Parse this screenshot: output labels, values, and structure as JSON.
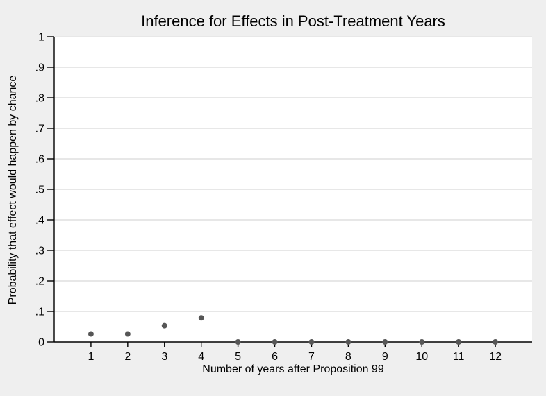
{
  "chart_data": {
    "type": "scatter",
    "title": "Inference for Effects in Post-Treatment Years",
    "xlabel": "Number of years after Proposition 99",
    "ylabel": "Probability that effect would happen by chance",
    "x": [
      1,
      2,
      3,
      4,
      5,
      6,
      7,
      8,
      9,
      10,
      11,
      12
    ],
    "y": [
      0.026,
      0.026,
      0.053,
      0.079,
      0,
      0,
      0,
      0,
      0,
      0,
      0,
      0
    ],
    "xlim": [
      0,
      13
    ],
    "ylim": [
      0,
      1
    ],
    "x_ticks": [
      1,
      2,
      3,
      4,
      5,
      6,
      7,
      8,
      9,
      10,
      11,
      12
    ],
    "x_tick_labels": [
      "1",
      "2",
      "3",
      "4",
      "5",
      "6",
      "7",
      "8",
      "9",
      "10",
      "11",
      "12"
    ],
    "y_ticks": [
      0,
      0.1,
      0.2,
      0.3,
      0.4,
      0.5,
      0.6,
      0.7,
      0.8,
      0.9,
      1
    ],
    "y_tick_labels": [
      "0",
      ".1",
      ".2",
      ".3",
      ".4",
      ".5",
      ".6",
      ".7",
      ".8",
      ".9",
      "1"
    ],
    "grid": "horizontal",
    "legend": "none",
    "colors": {
      "outer_background": "#efefef",
      "plot_background": "#ffffff",
      "gridline": "#e7e7e7",
      "axis": "#000000",
      "text": "#000000",
      "marker": "#565656"
    },
    "marker": {
      "shape": "circle",
      "radius": 4
    }
  }
}
